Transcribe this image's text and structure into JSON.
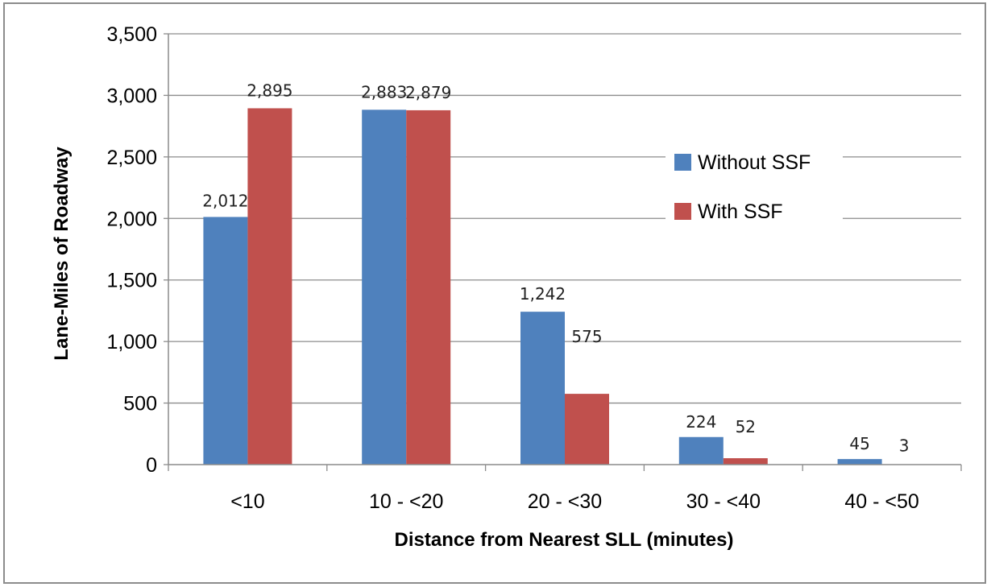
{
  "chart_data": {
    "type": "bar",
    "title": "",
    "xlabel": "Distance from Nearest SLL (minutes)",
    "ylabel": "Lane-Miles of Roadway",
    "ylim": [
      0,
      3500
    ],
    "yticks": [
      0,
      500,
      1000,
      1500,
      2000,
      2500,
      3000,
      3500
    ],
    "ytick_labels": [
      "0",
      "500",
      "1,000",
      "1,500",
      "2,000",
      "2,500",
      "3,000",
      "3,500"
    ],
    "grid": true,
    "legend_position": "right",
    "categories": [
      "<10",
      "10 - <20",
      "20 - <30",
      "30 - <40",
      "40 - <50"
    ],
    "series": [
      {
        "name": "Without SSF",
        "color": "#4f81bd",
        "values": [
          2012,
          2883,
          1242,
          224,
          45
        ],
        "labels": [
          "2,012",
          "2,883",
          "1,242",
          "224",
          "45"
        ]
      },
      {
        "name": "With SSF",
        "color": "#c0504d",
        "values": [
          2895,
          2879,
          575,
          52,
          3
        ],
        "labels": [
          "2,895",
          "2,879",
          "575",
          "52",
          "3"
        ]
      }
    ]
  }
}
